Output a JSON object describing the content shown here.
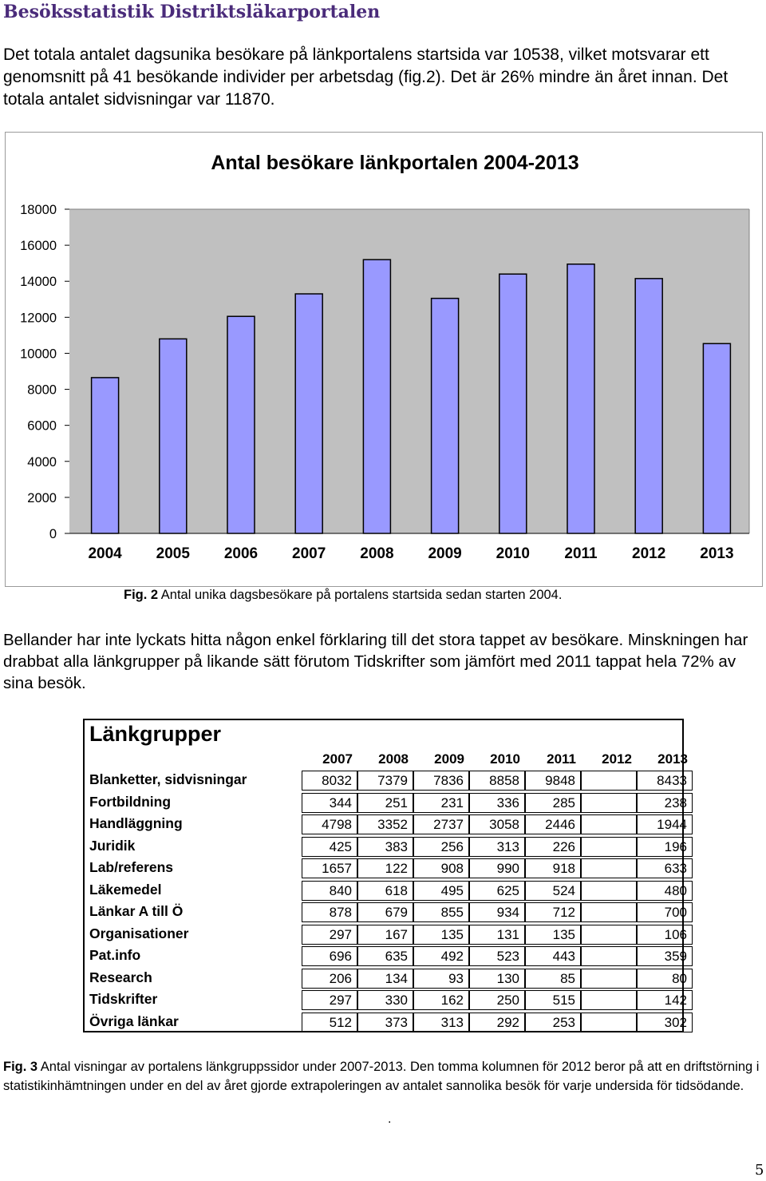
{
  "document": {
    "title": "Besöksstatistik Distriktsläkarportalen",
    "intro": "Det totala antalet dagsunika besökare på länkportalens startsida var 10538, vilket motsvarar ett genomsnitt på 41 besökande individer per arbetsdag (fig.2). Det är 26% mindre än året innan. Det totala antalet sidvisningar var 11870.",
    "caption1_fig": "Fig. 2",
    "caption1_text": "Antal unika dagsbesökare på portalens startsida sedan starten 2004.",
    "para2": "Bellander har inte lyckats hitta någon enkel förklaring till det stora tappet av besökare. Minskningen har drabbat alla länkgrupper på likande sätt förutom Tidskrifter som jämfört med 2011 tappat hela 72% av sina besök.",
    "caption2_fig": "Fig. 3",
    "caption2_text": "Antal visningar av portalens länkgruppssidor under 2007-2013. Den tomma kolumnen för 2012 beror på att en driftstörning i statistikinhämtningen under en del av året gjorde extrapoleringen av antalet sannolika besök för varje undersida för tidsödande.",
    "stray_dot": ".",
    "page_number": "5"
  },
  "chart_data": {
    "type": "bar",
    "title": "Antal besökare länkportalen 2004-2013",
    "categories": [
      "2004",
      "2005",
      "2006",
      "2007",
      "2008",
      "2009",
      "2010",
      "2011",
      "2012",
      "2013"
    ],
    "values": [
      8650,
      10800,
      12050,
      13300,
      15200,
      13050,
      14400,
      14950,
      14150,
      10538
    ],
    "ylim": [
      0,
      18000
    ],
    "yticks": [
      "0",
      "2000",
      "4000",
      "6000",
      "8000",
      "10000",
      "12000",
      "14000",
      "16000",
      "18000"
    ],
    "xlabel": "",
    "ylabel": "",
    "grid": false,
    "colors": {
      "bar_fill": "#9999ff",
      "bar_stroke": "#000000",
      "plot_bg": "#c0c0c0",
      "frame": "#808080"
    }
  },
  "table": {
    "title": "Länkgrupper",
    "years": [
      "2007",
      "2008",
      "2009",
      "2010",
      "2011",
      "2012",
      "2013"
    ],
    "rows": [
      {
        "label": "Blanketter, sidvisningar",
        "values": [
          "8032",
          "7379",
          "7836",
          "8858",
          "9848",
          "",
          "8433"
        ]
      },
      {
        "label": "Fortbildning",
        "values": [
          "344",
          "251",
          "231",
          "336",
          "285",
          "",
          "238"
        ]
      },
      {
        "label": "Handläggning",
        "values": [
          "4798",
          "3352",
          "2737",
          "3058",
          "2446",
          "",
          "1944"
        ]
      },
      {
        "label": "Juridik",
        "values": [
          "425",
          "383",
          "256",
          "313",
          "226",
          "",
          "196"
        ]
      },
      {
        "label": "Lab/referens",
        "values": [
          "1657",
          "122",
          "908",
          "990",
          "918",
          "",
          "633"
        ]
      },
      {
        "label": "Läkemedel",
        "values": [
          "840",
          "618",
          "495",
          "625",
          "524",
          "",
          "480"
        ]
      },
      {
        "label": "Länkar A till Ö",
        "values": [
          "878",
          "679",
          "855",
          "934",
          "712",
          "",
          "700"
        ]
      },
      {
        "label": "Organisationer",
        "values": [
          "297",
          "167",
          "135",
          "131",
          "135",
          "",
          "106"
        ]
      },
      {
        "label": "Pat.info",
        "values": [
          "696",
          "635",
          "492",
          "523",
          "443",
          "",
          "359"
        ]
      },
      {
        "label": "Research",
        "values": [
          "206",
          "134",
          "93",
          "130",
          "85",
          "",
          "80"
        ]
      },
      {
        "label": "Tidskrifter",
        "values": [
          "297",
          "330",
          "162",
          "250",
          "515",
          "",
          "142"
        ]
      },
      {
        "label": "Övriga länkar",
        "values": [
          "512",
          "373",
          "313",
          "292",
          "253",
          "",
          "302"
        ]
      }
    ]
  }
}
